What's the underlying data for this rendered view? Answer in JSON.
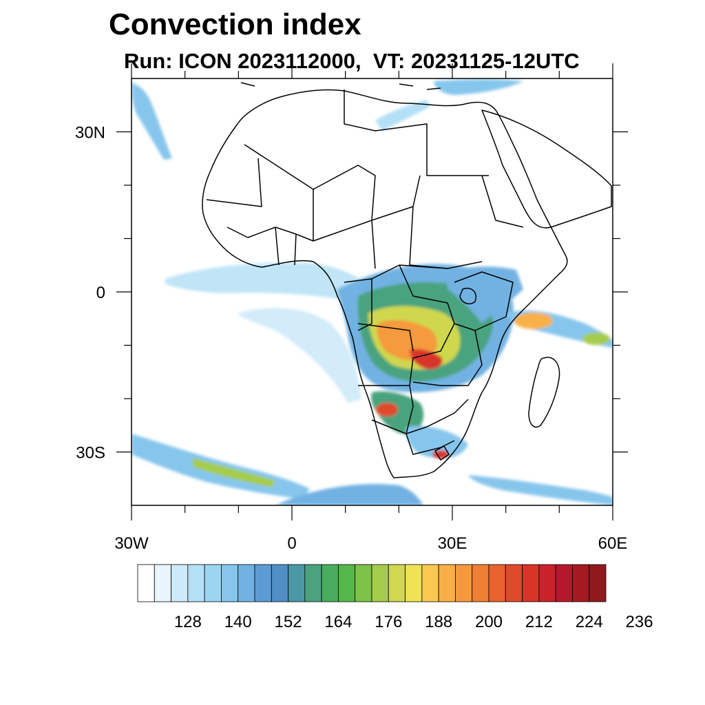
{
  "map": {
    "title": "Convection index",
    "subtitle": "Run: ICON 2023112000,  VT: 20231125-12UTC",
    "lon_range": [
      -30,
      60
    ],
    "lat_range": [
      -40,
      40
    ],
    "lon_ticks": [
      {
        "value": -30,
        "label": "30W"
      },
      {
        "value": 0,
        "label": "0"
      },
      {
        "value": 30,
        "label": "30E"
      },
      {
        "value": 60,
        "label": "60E"
      }
    ],
    "lat_ticks": [
      {
        "value": 30,
        "label": "30N"
      },
      {
        "value": 0,
        "label": "0"
      },
      {
        "value": -30,
        "label": "30S"
      }
    ],
    "minor_lon_ticks": [
      -20,
      -10,
      10,
      20,
      40,
      50
    ],
    "minor_lat_ticks": [
      20,
      10,
      -10,
      -20
    ]
  },
  "colorbar": {
    "label_values": [
      "128",
      "140",
      "152",
      "164",
      "176",
      "188",
      "200",
      "212",
      "224",
      "236"
    ],
    "colors": [
      "#ffffff",
      "#e8f5fc",
      "#cdeaf8",
      "#b4e0f6",
      "#9cd5f2",
      "#86c6ec",
      "#72b2e2",
      "#5d9bd4",
      "#4f8fc6",
      "#4a97a6",
      "#4aa37e",
      "#48ad5c",
      "#56b84a",
      "#7ec24a",
      "#a5cc4b",
      "#cfd84e",
      "#efe255",
      "#f8c84f",
      "#f8b046",
      "#f59a3c",
      "#f07f33",
      "#e9622d",
      "#e04a2a",
      "#d8342a",
      "#c9222a",
      "#b5182a",
      "#a51a22",
      "#8f1a1e"
    ]
  },
  "style": {
    "coast_color": "#000000",
    "frame_color": "#000000"
  }
}
